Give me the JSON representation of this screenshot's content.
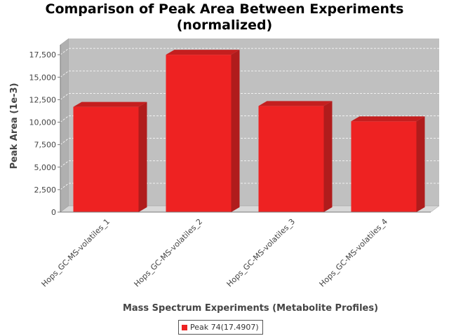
{
  "chart_data": {
    "type": "bar",
    "title_line1": "Comparison of Peak Area Between Experiments",
    "title_line2": "(normalized)",
    "xlabel": "Mass Spectrum Experiments (Metabolite Profiles)",
    "ylabel": "Peak Area (1e-3)",
    "categories": [
      "Hops_GC-MS-volatiles_1",
      "Hops_GC-MS-volatiles_2",
      "Hops_GC-MS-volatiles_3",
      "Hops_GC-MS-volatiles_4"
    ],
    "series": [
      {
        "name": "Peak 74(17.4907)",
        "values": [
          11700,
          17500,
          11800,
          10100
        ]
      }
    ],
    "ylim": [
      0,
      18600
    ],
    "yticks": [
      {
        "value": 0,
        "label": "0"
      },
      {
        "value": 2500,
        "label": "2,500"
      },
      {
        "value": 5000,
        "label": "5,000"
      },
      {
        "value": 7500,
        "label": "7,500"
      },
      {
        "value": 10000,
        "label": "10,000"
      },
      {
        "value": 12500,
        "label": "12,500"
      },
      {
        "value": 15000,
        "label": "15,000"
      },
      {
        "value": 17500,
        "label": "17,500"
      }
    ],
    "grid": true,
    "legend_position": "bottom",
    "colors": {
      "bar_front": "#ee2222",
      "bar_top": "#c41f1f",
      "bar_side": "#b01c1c",
      "plot_back": "#c0c0c0",
      "plot_floor": "#d8d8d8",
      "plot_wall": "#b0b0b0",
      "gridline": "#ffffff"
    }
  }
}
